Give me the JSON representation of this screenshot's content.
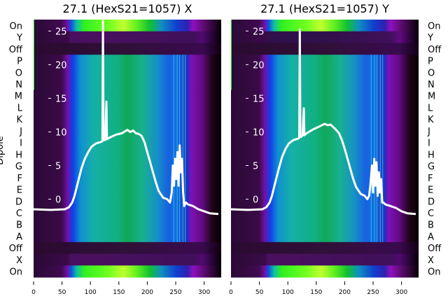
{
  "chart_data": [
    {
      "type": "heatmap",
      "title": "27.1 (HexS21=1057) X",
      "ylabel": "Dipole",
      "row_labels": [
        "On",
        "Y",
        "Off",
        "P",
        "O",
        "N",
        "M",
        "L",
        "K",
        "J",
        "I",
        "H",
        "G",
        "F",
        "E",
        "D",
        "C",
        "B",
        "A",
        "Off",
        "X",
        "On"
      ],
      "row_types": [
        "on",
        "dark",
        "off",
        "dip",
        "dip",
        "dip",
        "dip",
        "dip",
        "dip",
        "dip",
        "dip",
        "dip",
        "dip",
        "dip",
        "dip",
        "dip",
        "dip",
        "dip",
        "dip",
        "off",
        "dark",
        "on"
      ],
      "xlim": [
        0,
        330
      ],
      "xticks": [
        "0",
        "50",
        "100",
        "150",
        "200",
        "250",
        "300"
      ],
      "overlay_yticks": [
        "0",
        "5",
        "10",
        "15",
        "20",
        "25"
      ],
      "overlay_ylim": [
        -11.6,
        26.7
      ],
      "overlay_line": {
        "x": [
          0,
          30,
          55,
          62,
          68,
          72,
          78,
          84,
          90,
          96,
          102,
          110,
          118,
          121,
          122,
          123,
          124,
          126,
          128,
          129,
          130,
          135,
          145,
          155,
          165,
          170,
          175,
          180,
          185,
          190,
          195,
          200,
          205,
          210,
          215,
          220,
          228,
          235,
          240,
          243,
          245,
          247,
          249,
          251,
          253,
          255,
          257,
          259,
          261,
          263,
          265,
          268,
          272,
          280,
          290,
          300,
          310,
          325
        ],
        "y": [
          -1.5,
          -1.6,
          -1.5,
          -1.2,
          -0.5,
          0.5,
          2.5,
          4.5,
          6,
          7,
          7.8,
          8.3,
          8.5,
          8.6,
          26.5,
          9,
          8.8,
          8.8,
          14.5,
          8.9,
          9,
          9.2,
          9.6,
          9.8,
          10.3,
          10,
          10.2,
          9.8,
          9.7,
          9.4,
          8.5,
          7,
          5.5,
          4,
          2.5,
          1.2,
          0.2,
          0,
          -0.5,
          1,
          5,
          2,
          6,
          3,
          7,
          2,
          8,
          4,
          6,
          1,
          -1,
          -0.5,
          -0.8,
          -1,
          -1.5,
          -1.8,
          -2.1,
          -2.2
        ]
      }
    },
    {
      "type": "heatmap",
      "title": "27.1 (HexS21=1057) Y",
      "row_labels": [
        "On",
        "Y",
        "Off",
        "P",
        "O",
        "N",
        "M",
        "L",
        "K",
        "J",
        "I",
        "H",
        "G",
        "F",
        "E",
        "D",
        "C",
        "B",
        "A",
        "Off",
        "X",
        "On"
      ],
      "row_types": [
        "on",
        "on2",
        "off",
        "dip",
        "dip",
        "dip",
        "dip",
        "dip",
        "dip",
        "dip",
        "dip",
        "dip",
        "dip",
        "dip",
        "dip",
        "dip",
        "dip",
        "dip",
        "dip",
        "off",
        "dark",
        "on"
      ],
      "xlim": [
        0,
        330
      ],
      "xticks": [
        "0",
        "50",
        "100",
        "150",
        "200",
        "250",
        "300"
      ],
      "overlay_yticks": [
        "0",
        "5",
        "10",
        "15",
        "20",
        "25"
      ],
      "overlay_ylim": [
        -11.6,
        26.7
      ],
      "overlay_line": {
        "x": [
          0,
          30,
          55,
          62,
          68,
          72,
          78,
          84,
          90,
          96,
          102,
          110,
          118,
          120,
          121,
          122,
          124,
          126,
          128,
          129,
          130,
          135,
          145,
          155,
          165,
          170,
          175,
          180,
          185,
          190,
          195,
          200,
          205,
          210,
          215,
          220,
          228,
          235,
          240,
          243,
          245,
          248,
          250,
          252,
          254,
          256,
          258,
          260,
          262,
          264,
          266,
          268,
          272,
          280,
          290,
          300,
          310,
          325
        ],
        "y": [
          -1.5,
          -1.6,
          -1.5,
          -1.2,
          -0.5,
          0.5,
          2.5,
          4.5,
          6.3,
          7.5,
          8.3,
          8.8,
          9,
          9.1,
          25.2,
          9.3,
          9.3,
          9.5,
          13.5,
          9.5,
          9.6,
          9.9,
          10.4,
          10.8,
          11.2,
          11,
          11.1,
          10.7,
          10.3,
          9.8,
          8.8,
          7.5,
          6,
          4.5,
          3,
          1.8,
          0.8,
          0.5,
          0,
          0.5,
          2,
          5,
          1,
          6,
          2,
          5.5,
          0.5,
          4,
          1,
          3,
          -0.5,
          -0.5,
          -0.8,
          -1,
          -1.3,
          -1.8,
          -2.1,
          -2.2
        ]
      }
    }
  ]
}
